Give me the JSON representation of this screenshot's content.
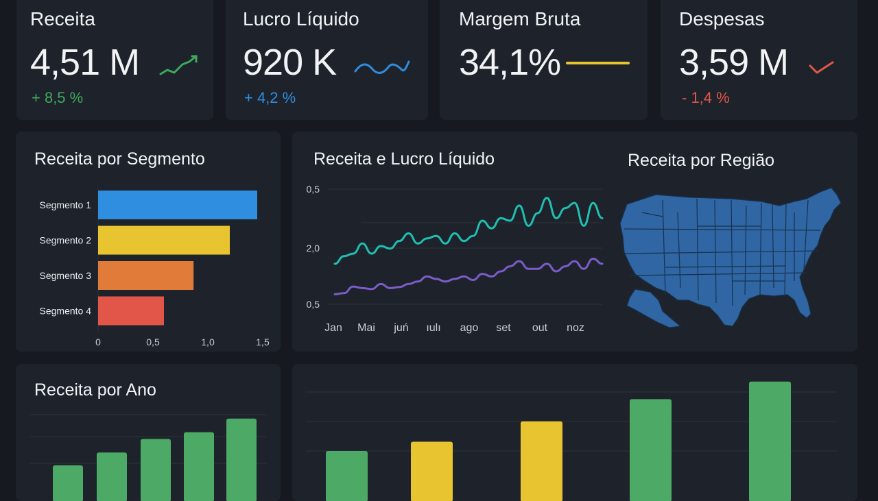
{
  "kpis": [
    {
      "title": "Receita",
      "value": "4,51 M",
      "change": "+ 8,5 %",
      "color": "#3fa95b",
      "trend": "up"
    },
    {
      "title": "Lucro Líquido",
      "value": "920 K",
      "change": "+ 4,2 %",
      "color": "#2f8ee0",
      "trend": "wave"
    },
    {
      "title": "Margem Bruta",
      "value": "34,1%",
      "change": "",
      "color": "#e8c530",
      "trend": "flat"
    },
    {
      "title": "Despesas",
      "value": "3,59 M",
      "change": "- 1,4 %",
      "color": "#e2564a",
      "trend": "down"
    }
  ],
  "segment_panel": {
    "title": "Receita por Segmento"
  },
  "line_panel": {
    "title": "Receita e Lucro Líquido"
  },
  "region_panel": {
    "title": "Receita por Região"
  },
  "year_panel": {
    "title": "Receita por Ano"
  },
  "colors": {
    "blue": "#2f8ee0",
    "yellow": "#e8c530",
    "orange": "#e07b39",
    "red": "#e2564a",
    "green": "#4caa66",
    "teal": "#1fbfb1",
    "purple": "#7c5cc9",
    "map": "#2f66a3"
  },
  "chart_data": [
    {
      "type": "bar",
      "orientation": "horizontal",
      "title": "Receita por Segmento",
      "categories": [
        "Segmento 1",
        "Segmento 2",
        "Segmento 3",
        "Segmento 4"
      ],
      "values": [
        1.45,
        1.2,
        0.87,
        0.6
      ],
      "bar_colors": [
        "#2f8ee0",
        "#e8c530",
        "#e07b39",
        "#e2564a"
      ],
      "xticks": [
        "0",
        "0,5",
        "1,0",
        "1,5"
      ],
      "xlim": [
        0,
        1.5
      ]
    },
    {
      "type": "line",
      "title": "Receita e Lucro Líquido",
      "x_labels": [
        "Jan",
        "Mai",
        "juń",
        "ıulı",
        "ago",
        "set",
        "out",
        "noz"
      ],
      "yticks": [
        "0,5",
        "2,0",
        "0,5"
      ],
      "series": [
        {
          "color": "#1fbfb1",
          "values": [
            1.2,
            1.35,
            1.4,
            1.6,
            1.4,
            1.55,
            1.5,
            1.65,
            1.8,
            1.6,
            1.7,
            1.75,
            1.6,
            1.8,
            1.65,
            1.75,
            2.05,
            1.9,
            2.1,
            2.05,
            2.35,
            1.95,
            2.2,
            2.5,
            2.1,
            2.3,
            2.4,
            1.95,
            2.4,
            2.1
          ]
        },
        {
          "color": "#7c5cc9",
          "values": [
            0.6,
            0.62,
            0.75,
            0.72,
            0.7,
            0.8,
            0.72,
            0.74,
            0.8,
            0.85,
            0.95,
            0.9,
            0.85,
            0.9,
            0.95,
            0.88,
            1.0,
            0.95,
            1.05,
            1.15,
            1.25,
            1.1,
            1.1,
            1.2,
            1.05,
            1.15,
            1.25,
            1.1,
            1.3,
            1.2
          ]
        }
      ]
    },
    {
      "type": "bar",
      "title": "Receita por Ano",
      "values": [
        30,
        47,
        65,
        74,
        92
      ],
      "bar_colors": [
        "#4caa66",
        "#4caa66",
        "#4caa66",
        "#4caa66",
        "#4caa66"
      ]
    },
    {
      "type": "bar",
      "title": "",
      "values": [
        40,
        50,
        72,
        96,
        115
      ],
      "bar_colors": [
        "#4caa66",
        "#e8c530",
        "#e8c530",
        "#4caa66",
        "#4caa66"
      ]
    }
  ]
}
